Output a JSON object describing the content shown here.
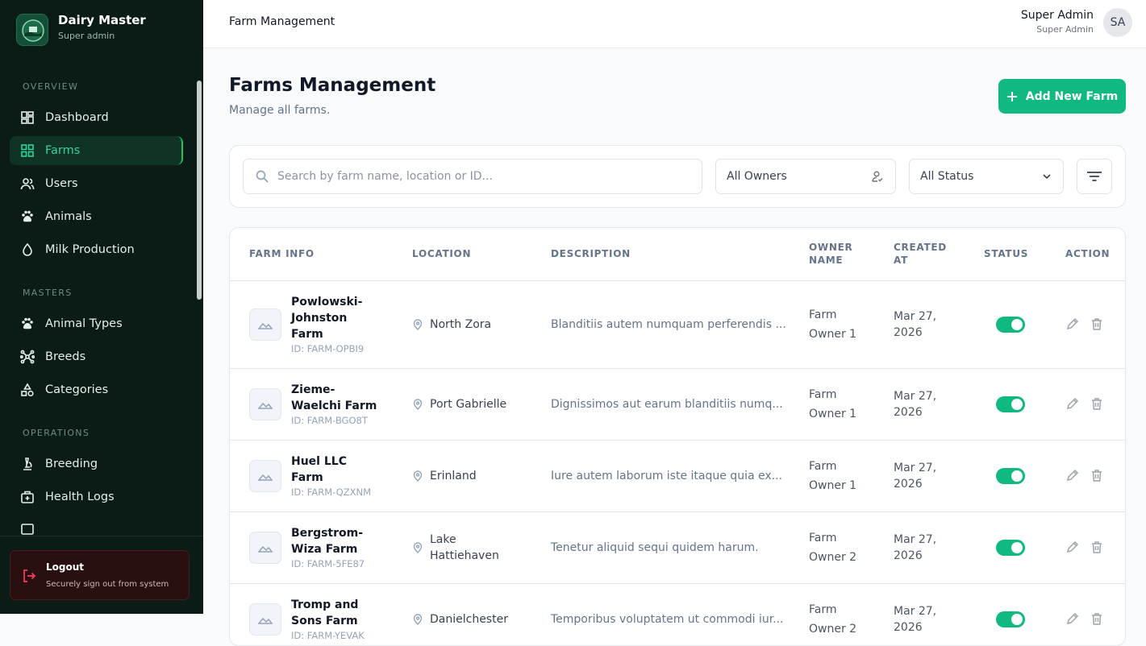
{
  "sidebar": {
    "brand": "Dairy Master",
    "role": "Super admin",
    "sections": [
      {
        "title": "OVERVIEW",
        "items": [
          "Dashboard",
          "Farms",
          "Users",
          "Animals",
          "Milk Production"
        ]
      },
      {
        "title": "MASTERS",
        "items": [
          "Animal Types",
          "Breeds",
          "Categories"
        ]
      },
      {
        "title": "OPERATIONS",
        "items": [
          "Breeding",
          "Health Logs"
        ]
      }
    ],
    "logout": {
      "title": "Logout",
      "subtitle": "Securely sign out from system"
    }
  },
  "header": {
    "breadcrumb": "Farm Management",
    "user_name": "Super Admin",
    "user_role": "Super Admin",
    "initials": "SA"
  },
  "page": {
    "title": "Farms Management",
    "subtitle": "Manage all farms.",
    "add_button": "Add New Farm"
  },
  "filters": {
    "search_placeholder": "Search by farm name, location or ID...",
    "owner": "All Owners",
    "status": "All Status"
  },
  "table": {
    "columns": [
      "FARM INFO",
      "LOCATION",
      "DESCRIPTION",
      "OWNER NAME",
      "CREATED AT",
      "STATUS",
      "ACTION"
    ],
    "rows": [
      {
        "name": "Powlowski-Johnston Farm",
        "id": "ID: FARM-OPBI9",
        "location": "North Zora",
        "description": "Blanditiis autem numquam perferendis ...",
        "owner": "Farm Owner 1",
        "created": "Mar 27, 2026",
        "active": true
      },
      {
        "name": "Zieme-Waelchi Farm",
        "id": "ID: FARM-BGO8T",
        "location": "Port Gabrielle",
        "description": "Dignissimos aut earum blanditiis numq...",
        "owner": "Farm Owner 1",
        "created": "Mar 27, 2026",
        "active": true
      },
      {
        "name": "Huel LLC Farm",
        "id": "ID: FARM-QZXNM",
        "location": "Erinland",
        "description": "Iure autem laborum iste itaque quia ex...",
        "owner": "Farm Owner 1",
        "created": "Mar 27, 2026",
        "active": true
      },
      {
        "name": "Bergstrom-Wiza Farm",
        "id": "ID: FARM-5FE87",
        "location": "Lake Hattiehaven",
        "description": "Tenetur aliquid sequi quidem harum.",
        "owner": "Farm Owner 2",
        "created": "Mar 27, 2026",
        "active": true
      },
      {
        "name": "Tromp and Sons Farm",
        "id": "ID: FARM-YEVAK",
        "location": "Danielchester",
        "description": "Temporibus voluptatem ut commodi iur...",
        "owner": "Farm Owner 2",
        "created": "Mar 27, 2026",
        "active": true
      }
    ]
  }
}
